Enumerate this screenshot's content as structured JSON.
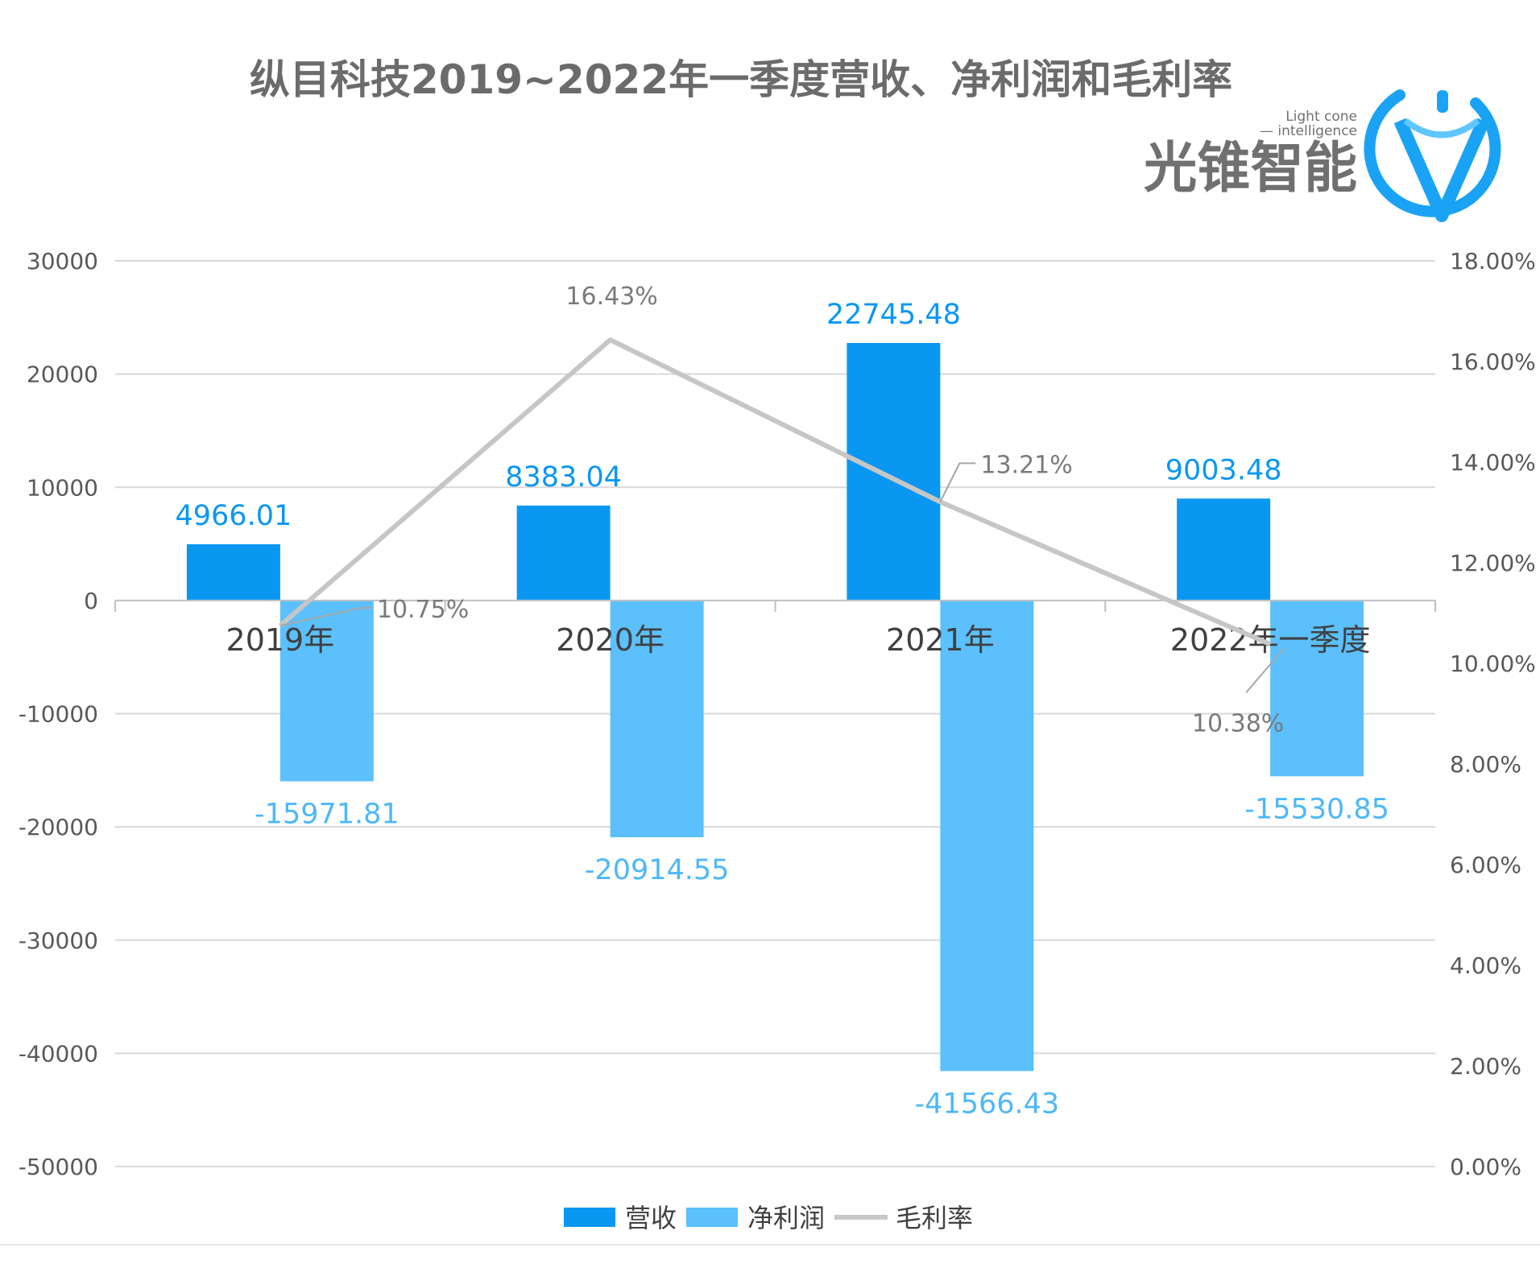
{
  "title": "纵目科技2019~2022年一季度营收、净利润和毛利率",
  "logo": {
    "name": "光锥智能",
    "tagline_1": "Light cone",
    "tagline_2": "— intelligence",
    "color": "#1aa3f5"
  },
  "chart_data": {
    "type": "bar",
    "categories": [
      "2019年",
      "2020年",
      "2021年",
      "2022年一季度"
    ],
    "series": [
      {
        "name": "营收",
        "type": "bar",
        "axis": "left",
        "color": "#0a97f2",
        "values": [
          4966.01,
          8383.04,
          22745.48,
          9003.48
        ],
        "labels": [
          "4966.01",
          "8383.04",
          "22745.48",
          "9003.48"
        ]
      },
      {
        "name": "净利润",
        "type": "bar",
        "axis": "left",
        "color": "#5bc0fc",
        "values": [
          -15971.81,
          -20914.55,
          -41566.43,
          -15530.85
        ],
        "labels": [
          "-15971.81",
          "-20914.55",
          "-41566.43",
          "-15530.85"
        ]
      },
      {
        "name": "毛利率",
        "type": "line",
        "axis": "right",
        "color": "#c6c6c6",
        "values": [
          10.75,
          16.43,
          13.21,
          10.38
        ],
        "labels": [
          "10.75%",
          "16.43%",
          "13.21%",
          "10.38%"
        ]
      }
    ],
    "y_left": {
      "min": -50000,
      "max": 30000,
      "step": 10000,
      "ticks": [
        "30000",
        "20000",
        "10000",
        "0",
        "-10000",
        "-20000",
        "-30000",
        "-40000",
        "-50000"
      ]
    },
    "y_right": {
      "min": 0,
      "max": 18,
      "step": 2,
      "ticks": [
        "18.00%",
        "16.00%",
        "14.00%",
        "12.00%",
        "10.00%",
        "8.00%",
        "6.00%",
        "4.00%",
        "2.00%",
        "0.00%"
      ]
    },
    "grid": true,
    "legend_position": "bottom"
  }
}
